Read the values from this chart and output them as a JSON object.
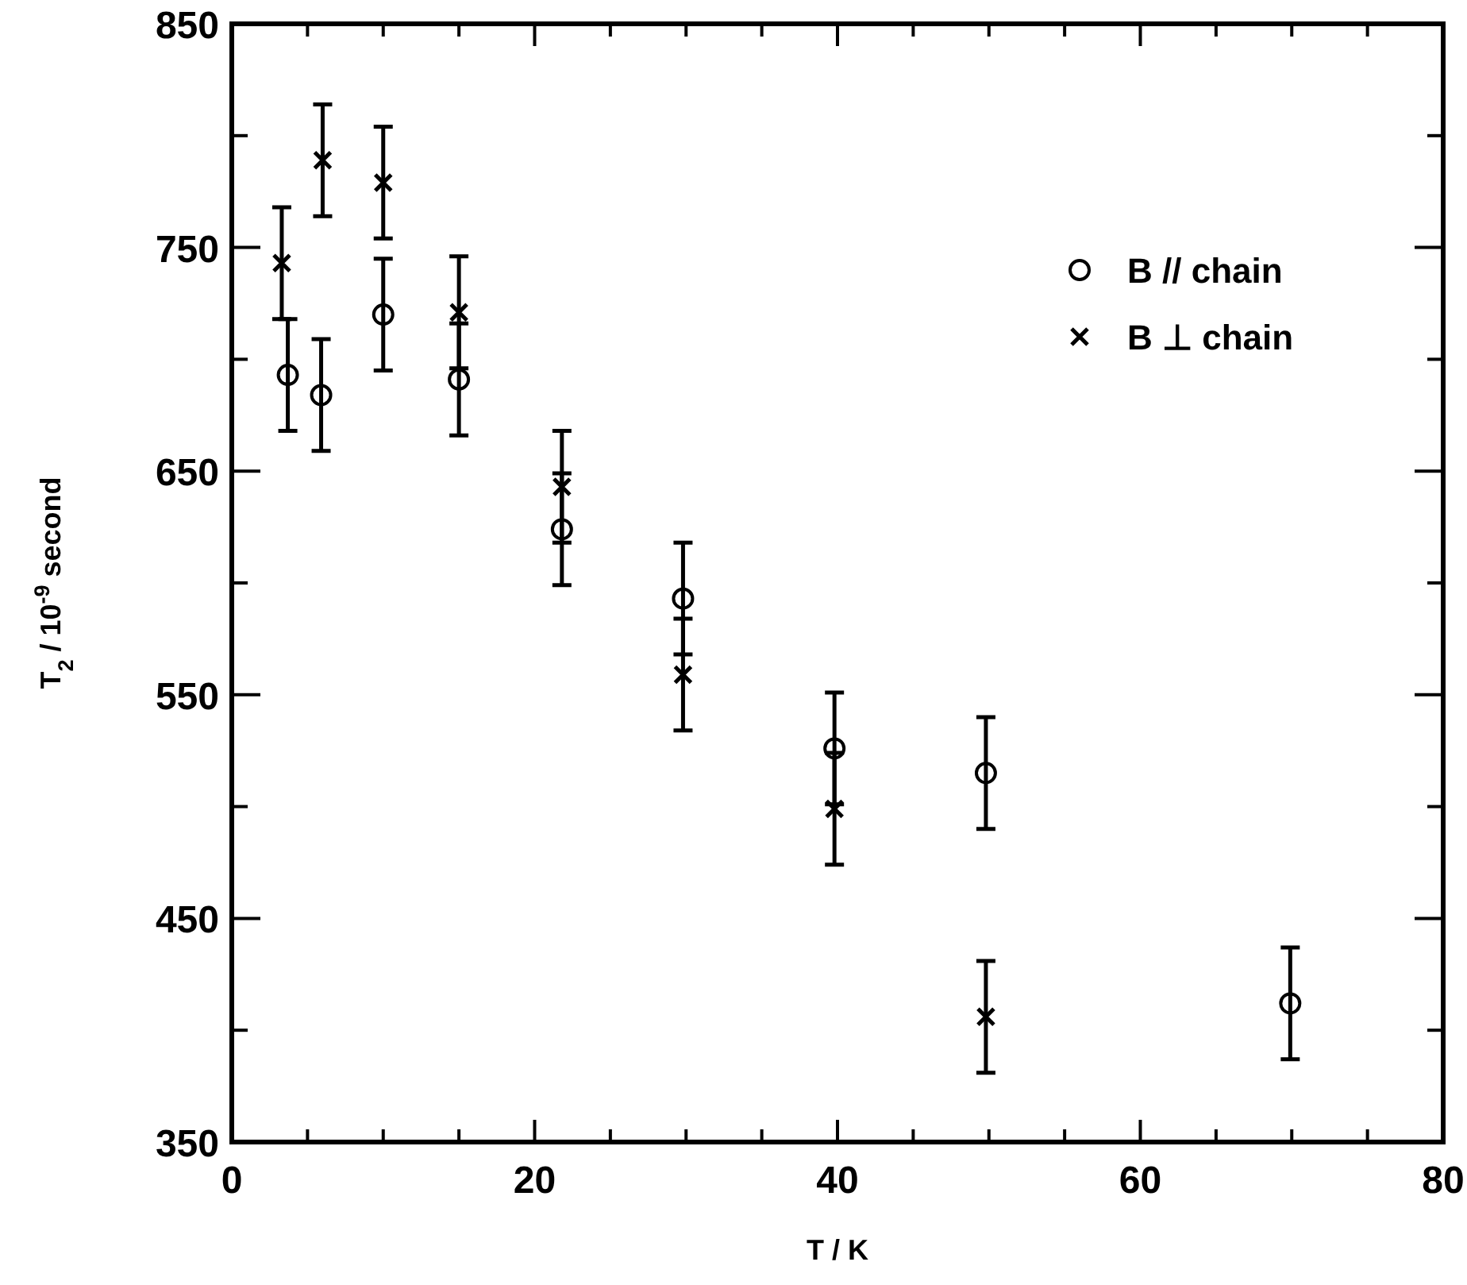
{
  "chart_data": {
    "type": "scatter",
    "xlabel": "T / K",
    "ylabel": "T$_{2}$ / 10$^{-9}$ second",
    "xlim": [
      0,
      80
    ],
    "ylim": [
      350,
      850
    ],
    "xticks": [
      0,
      {
        "value": 5,
        "label": null
      },
      {
        "value": 10,
        "label": null
      },
      {
        "value": 15,
        "label": null
      },
      20,
      {
        "value": 25,
        "label": null
      },
      {
        "value": 30,
        "label": null
      },
      {
        "value": 35,
        "label": null
      },
      40,
      {
        "value": 45,
        "label": null
      },
      {
        "value": 50,
        "label": null
      },
      {
        "value": 55,
        "label": null
      },
      60,
      {
        "value": 65,
        "label": null
      },
      {
        "value": 70,
        "label": null
      },
      {
        "value": 75,
        "label": null
      },
      80
    ],
    "yticks": [
      350,
      {
        "value": 400,
        "label": null
      },
      450,
      {
        "value": 500,
        "label": null
      },
      550,
      {
        "value": 600,
        "label": null
      },
      650,
      {
        "value": 700,
        "label": null
      },
      750,
      {
        "value": 800,
        "label": null
      },
      850
    ],
    "grid": false,
    "legend": "top right",
    "series": [
      {
        "name": "B // chain",
        "color": "#000000",
        "marker": "circle",
        "x": [
          3.7,
          5.9,
          10,
          15,
          21.8,
          29.8,
          39.8,
          49.8,
          69.9
        ],
        "values": [
          693,
          684,
          720,
          691,
          624,
          593,
          526,
          515,
          412
        ],
        "errors": [
          25,
          25,
          25,
          25,
          25,
          25,
          25,
          25,
          25
        ]
      },
      {
        "name": "B ⊥ chain",
        "color": "#000000",
        "marker": "cross",
        "x": [
          3.3,
          6.0,
          10,
          15,
          21.8,
          29.8,
          39.8,
          49.8
        ],
        "values": [
          743,
          789,
          779,
          721,
          643,
          559,
          499,
          406
        ],
        "errors": [
          25,
          25,
          25,
          25,
          25,
          25,
          25,
          25
        ]
      }
    ]
  }
}
